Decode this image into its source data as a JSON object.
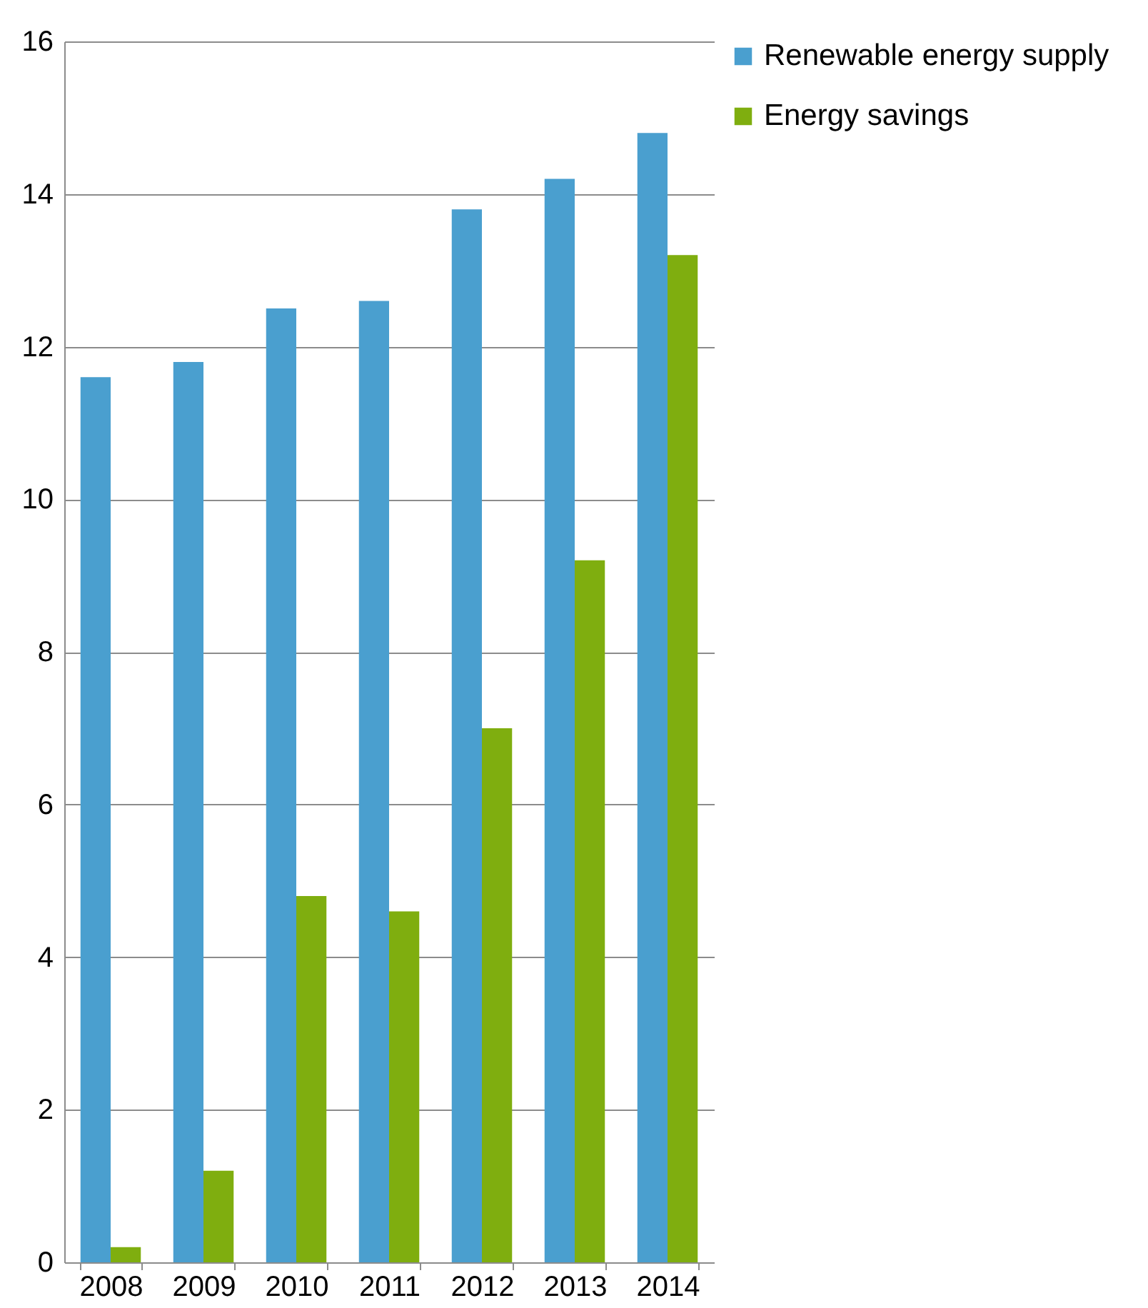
{
  "chart_data": {
    "type": "bar",
    "categories": [
      "2008",
      "2009",
      "2010",
      "2011",
      "2012",
      "2013",
      "2014"
    ],
    "series": [
      {
        "name": "Renewable energy supply",
        "color": "#4a9fcf",
        "values": [
          11.6,
          11.8,
          12.5,
          12.6,
          13.8,
          14.2,
          14.8
        ]
      },
      {
        "name": "Energy savings",
        "color": "#7fae0f",
        "values": [
          0.2,
          1.2,
          4.8,
          4.6,
          7.0,
          9.2,
          13.2
        ]
      }
    ],
    "ylim": [
      0,
      16
    ],
    "yticks": [
      0,
      2,
      4,
      6,
      8,
      10,
      12,
      14,
      16
    ],
    "grid": "y",
    "legend": "right"
  }
}
